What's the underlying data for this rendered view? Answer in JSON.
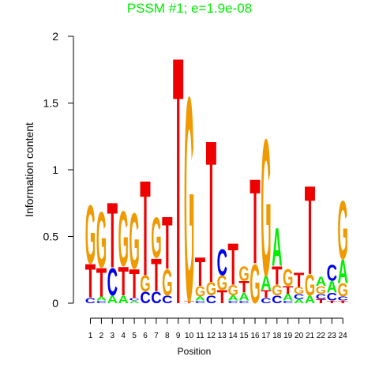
{
  "chart_data": {
    "type": "sequence_logo",
    "title": "PSSM #1; e=1.9e-08",
    "xlabel": "Position",
    "ylabel": "Information content",
    "ylim": [
      0,
      2
    ],
    "yticks": [
      0,
      0.5,
      1,
      1.5,
      2
    ],
    "ytick_labels": [
      "0",
      "0.5",
      "1",
      "1.5",
      "2"
    ],
    "positions": [
      "1",
      "2",
      "3",
      "4",
      "5",
      "6",
      "7",
      "8",
      "9",
      "10",
      "11",
      "12",
      "13",
      "14",
      "15",
      "16",
      "17",
      "18",
      "19",
      "20",
      "21",
      "22",
      "23",
      "24"
    ],
    "colors": {
      "A": "#00ee00",
      "C": "#0000ee",
      "G": "#ee9a00",
      "T": "#ee0000"
    },
    "columns": [
      [
        [
          "C",
          0.04
        ],
        [
          "T",
          0.26
        ],
        [
          "G",
          0.45
        ]
      ],
      [
        [
          "C",
          0.02
        ],
        [
          "A",
          0.03
        ],
        [
          "T",
          0.22
        ],
        [
          "G",
          0.43
        ]
      ],
      [
        [
          "A",
          0.06
        ],
        [
          "C",
          0.21
        ],
        [
          "T",
          0.5
        ]
      ],
      [
        [
          "A",
          0.06
        ],
        [
          "T",
          0.22
        ],
        [
          "G",
          0.42
        ]
      ],
      [
        [
          "A",
          0.02
        ],
        [
          "C",
          0.02
        ],
        [
          "T",
          0.22
        ],
        [
          "G",
          0.43
        ]
      ],
      [
        [
          "C",
          0.09
        ],
        [
          "G",
          0.12
        ],
        [
          "T",
          0.73
        ]
      ],
      [
        [
          "C",
          0.09
        ],
        [
          "T",
          0.25
        ],
        [
          "G",
          0.31
        ]
      ],
      [
        [
          "C",
          0.06
        ],
        [
          "G",
          0.2
        ],
        [
          "T",
          0.4
        ]
      ],
      [
        [
          "T",
          1.9
        ]
      ],
      [
        [
          "T",
          0.02
        ],
        [
          "G",
          1.57
        ]
      ],
      [
        [
          "C",
          0.02
        ],
        [
          "A",
          0.03
        ],
        [
          "G",
          0.08
        ],
        [
          "T",
          0.22
        ]
      ],
      [
        [
          "C",
          0.06
        ],
        [
          "G",
          0.1
        ],
        [
          "T",
          1.09
        ]
      ],
      [
        [
          "T",
          0.1
        ],
        [
          "G",
          0.11
        ],
        [
          "C",
          0.2
        ]
      ],
      [
        [
          "C",
          0.02
        ],
        [
          "A",
          0.04
        ],
        [
          "G",
          0.08
        ],
        [
          "T",
          0.32
        ]
      ],
      [
        [
          "C",
          0.02
        ],
        [
          "A",
          0.06
        ],
        [
          "T",
          0.09
        ],
        [
          "G",
          0.11
        ]
      ],
      [
        [
          "G",
          0.3
        ],
        [
          "T",
          0.65
        ]
      ],
      [
        [
          "C",
          0.04
        ],
        [
          "T",
          0.06
        ],
        [
          "A",
          0.11
        ],
        [
          "G",
          1.05
        ]
      ],
      [
        [
          "C",
          0.06
        ],
        [
          "G",
          0.08
        ],
        [
          "T",
          0.14
        ],
        [
          "A",
          0.29
        ]
      ],
      [
        [
          "C",
          0.02
        ],
        [
          "A",
          0.05
        ],
        [
          "T",
          0.06
        ],
        [
          "G",
          0.13
        ]
      ],
      [
        [
          "A",
          0.03
        ],
        [
          "C",
          0.04
        ],
        [
          "G",
          0.05
        ],
        [
          "T",
          0.11
        ]
      ],
      [
        [
          "A",
          0.06
        ],
        [
          "G",
          0.16
        ],
        [
          "T",
          0.68
        ]
      ],
      [
        [
          "T",
          0.03
        ],
        [
          "C",
          0.04
        ],
        [
          "G",
          0.06
        ],
        [
          "A",
          0.07
        ]
      ],
      [
        [
          "T",
          0.02
        ],
        [
          "C",
          0.06
        ],
        [
          "A",
          0.09
        ],
        [
          "C",
          0.12
        ]
      ],
      [
        [
          "T",
          0.02
        ],
        [
          "C",
          0.03
        ],
        [
          "G",
          0.1
        ],
        [
          "A",
          0.18
        ],
        [
          "G",
          0.45
        ]
      ]
    ]
  }
}
